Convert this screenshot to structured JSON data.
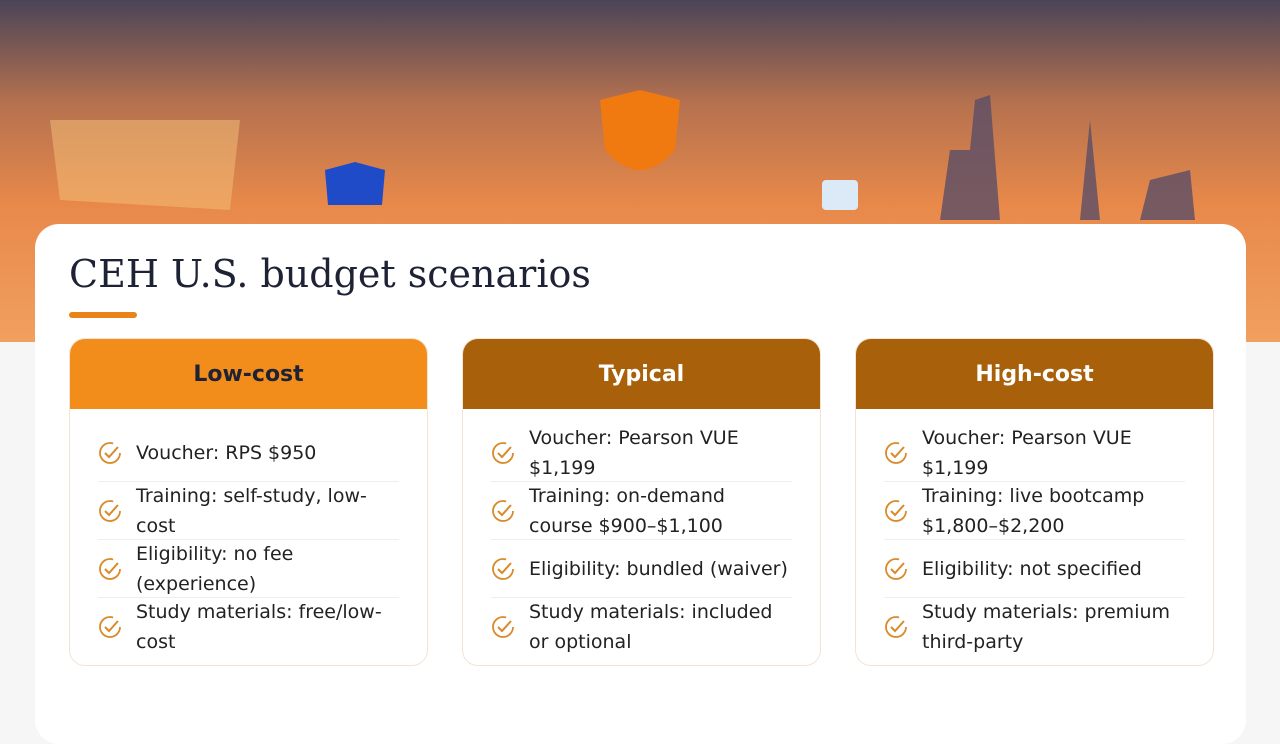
{
  "title": "CEH U.S. budget scenarios",
  "cards": [
    {
      "heading": "Low-cost",
      "items": [
        "Voucher: RPS $950",
        "Training: self-study, low-cost",
        "Eligibility: no fee (experience)",
        "Study materials: free/low-cost"
      ]
    },
    {
      "heading": "Typical",
      "items": [
        "Voucher: Pearson VUE $1,199",
        "Training: on-demand course $900–$1,100",
        "Eligibility: bundled (waiver)",
        "Study materials: included or optional"
      ]
    },
    {
      "heading": "High-cost",
      "items": [
        "Voucher: Pearson VUE $1,199",
        "Training: live bootcamp $1,800–$2,200",
        "Eligibility: not specified",
        "Study materials: premium third-party"
      ]
    }
  ]
}
